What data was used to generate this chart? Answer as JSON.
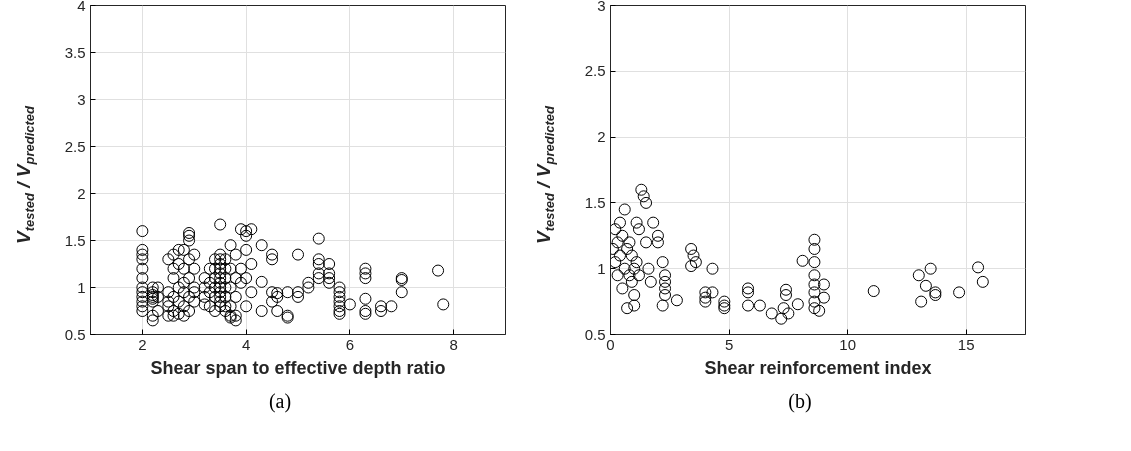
{
  "chart_data": [
    {
      "type": "scatter",
      "xlabel": "Shear span to effective depth ratio",
      "ylabel": "V$_{tested}$ / V$_{predicted}$",
      "annotations": [
        "(a)"
      ],
      "marker": "circle",
      "grid": true,
      "xlim": [
        1,
        9
      ],
      "ylim": [
        0.5,
        4
      ],
      "xticks": [
        2,
        4,
        6,
        8
      ],
      "yticks": [
        0.5,
        1,
        1.5,
        2,
        2.5,
        3,
        3.5,
        4
      ],
      "series": [
        {
          "color": "#000000",
          "x": [
            2,
            2,
            2,
            2,
            2,
            2,
            2,
            2,
            2,
            2,
            2,
            2,
            2.2,
            2.2,
            2.2,
            2.2,
            2.2,
            2.2,
            2.2,
            2.2,
            2.3,
            2.3,
            2.3,
            2.5,
            2.5,
            2.5,
            2.5,
            2.5,
            2.6,
            2.6,
            2.6,
            2.6,
            2.6,
            2.6,
            2.7,
            2.7,
            2.7,
            2.7,
            2.7,
            2.8,
            2.8,
            2.8,
            2.8,
            2.8,
            2.8,
            2.9,
            2.9,
            2.9,
            2.9,
            2.9,
            2.9,
            2.9,
            3.0,
            3.0,
            3.0,
            3.0,
            3.0,
            3.2,
            3.2,
            3.2,
            3.2,
            3.3,
            3.3,
            3.3,
            3.3,
            3.4,
            3.4,
            3.4,
            3.4,
            3.4,
            3.4,
            3.5,
            3.5,
            3.5,
            3.5,
            3.5,
            3.5,
            3.5,
            3.5,
            3.5,
            3.5,
            3.5,
            3.5,
            3.5,
            3.6,
            3.6,
            3.6,
            3.6,
            3.6,
            3.6,
            3.6,
            3.7,
            3.7,
            3.7,
            3.7,
            3.7,
            3.7,
            3.8,
            3.8,
            3.8,
            3.8,
            3.8,
            3.9,
            3.9,
            3.9,
            4.0,
            4.0,
            4.0,
            4.0,
            4.0,
            4.1,
            4.1,
            4.1,
            4.3,
            4.3,
            4.3,
            4.5,
            4.5,
            4.5,
            4.5,
            4.6,
            4.6,
            4.6,
            4.8,
            4.8,
            4.8,
            5.0,
            5.0,
            5.0,
            5.2,
            5.2,
            5.4,
            5.4,
            5.4,
            5.4,
            5.4,
            5.6,
            5.6,
            5.6,
            5.6,
            5.8,
            5.8,
            5.8,
            5.8,
            5.8,
            5.8,
            5.8,
            6.0,
            6.3,
            6.3,
            6.3,
            6.3,
            6.3,
            6.3,
            6.6,
            6.6,
            6.8,
            7.0,
            7.0,
            7.0,
            7.7,
            7.8
          ],
          "values": [
            1.6,
            1.4,
            1.35,
            1.3,
            1.2,
            1.1,
            1.0,
            0.95,
            0.9,
            0.85,
            0.8,
            0.75,
            0.95,
            0.9,
            0.92,
            0.88,
            1.0,
            0.85,
            0.7,
            0.65,
            1.0,
            0.9,
            0.75,
            0.8,
            0.7,
            0.85,
            1.3,
            0.95,
            1.35,
            1.2,
            1.1,
            0.9,
            0.75,
            0.7,
            1.4,
            1.25,
            1.0,
            0.85,
            0.72,
            1.4,
            1.2,
            1.05,
            0.95,
            0.8,
            0.7,
            1.58,
            1.55,
            1.5,
            1.3,
            1.1,
            0.9,
            0.75,
            1.35,
            1.2,
            1.0,
            0.95,
            0.85,
            1.1,
            1.0,
            0.9,
            0.82,
            1.05,
            0.95,
            0.8,
            1.2,
            1.3,
            1.2,
            1.1,
            1.0,
            0.9,
            0.75,
            1.67,
            1.35,
            1.3,
            1.25,
            1.2,
            1.15,
            1.1,
            1.05,
            1.0,
            0.95,
            0.9,
            0.85,
            0.8,
            1.3,
            1.2,
            1.1,
            1.0,
            0.9,
            0.8,
            0.75,
            1.45,
            1.2,
            1.0,
            0.8,
            0.7,
            0.68,
            1.35,
            1.1,
            0.9,
            0.7,
            0.65,
            1.62,
            1.2,
            1.05,
            1.6,
            1.55,
            1.4,
            1.1,
            0.8,
            1.62,
            1.25,
            0.95,
            1.45,
            1.06,
            0.75,
            1.35,
            1.3,
            0.95,
            0.85,
            0.9,
            0.94,
            0.75,
            0.95,
            0.7,
            0.68,
            1.35,
            0.95,
            0.9,
            1.05,
            1.0,
            1.52,
            1.3,
            1.25,
            1.15,
            1.1,
            1.25,
            1.15,
            1.1,
            1.05,
            0.9,
            0.85,
            0.8,
            0.75,
            0.72,
            1.0,
            0.95,
            0.82,
            1.2,
            1.15,
            1.1,
            0.88,
            0.75,
            0.72,
            0.75,
            0.8,
            0.8,
            0.95,
            1.1,
            1.08,
            1.18,
            0.82
          ]
        }
      ]
    },
    {
      "type": "scatter",
      "xlabel": "Shear reinforcement index",
      "ylabel": "V$_{tested}$ / V$_{predicted}$",
      "annotations": [
        "(b)"
      ],
      "marker": "circle",
      "grid": true,
      "xlim": [
        0,
        17.5
      ],
      "ylim": [
        0.5,
        3
      ],
      "xticks": [
        0,
        5,
        10,
        15
      ],
      "yticks": [
        0.5,
        1,
        1.5,
        2,
        2.5,
        3
      ],
      "series": [
        {
          "color": "#000000",
          "x": [
            0.1,
            0.2,
            0.2,
            0.3,
            0.3,
            0.4,
            0.4,
            0.5,
            0.5,
            0.6,
            0.6,
            0.7,
            0.7,
            0.8,
            0.8,
            0.9,
            0.9,
            1.0,
            1.0,
            1.0,
            1.1,
            1.1,
            1.2,
            1.2,
            1.3,
            1.4,
            1.5,
            1.5,
            1.6,
            1.7,
            1.8,
            2.0,
            2.0,
            2.2,
            2.3,
            2.3,
            2.3,
            2.3,
            2.2,
            2.8,
            3.4,
            3.5,
            3.4,
            3.6,
            4.0,
            4.0,
            4.0,
            4.3,
            4.3,
            4.8,
            4.8,
            4.8,
            5.8,
            5.8,
            5.8,
            6.3,
            6.8,
            7.4,
            7.4,
            7.3,
            7.2,
            7.5,
            7.9,
            8.1,
            8.6,
            8.6,
            8.6,
            8.6,
            8.6,
            8.6,
            8.6,
            8.6,
            8.8,
            9.0,
            9.0,
            11.1,
            13.0,
            13.1,
            13.3,
            13.5,
            13.7,
            13.7,
            14.7,
            15.5,
            15.7
          ],
          "values": [
            1.15,
            1.3,
            1.05,
            1.2,
            0.95,
            1.35,
            1.1,
            0.85,
            1.25,
            1.45,
            1.0,
            0.7,
            1.15,
            1.2,
            0.95,
            1.1,
            0.9,
            1.0,
            0.8,
            0.72,
            1.35,
            1.05,
            1.3,
            0.95,
            1.6,
            1.55,
            1.5,
            1.2,
            1.0,
            0.9,
            1.35,
            1.25,
            1.2,
            1.05,
            0.95,
            0.9,
            0.85,
            0.8,
            0.72,
            0.76,
            1.15,
            1.1,
            1.02,
            1.05,
            0.82,
            0.78,
            0.75,
            1.0,
            0.82,
            0.75,
            0.72,
            0.7,
            0.85,
            0.82,
            0.72,
            0.72,
            0.66,
            0.84,
            0.8,
            0.7,
            0.62,
            0.66,
            0.73,
            1.06,
            1.22,
            1.15,
            1.05,
            0.95,
            0.88,
            0.82,
            0.75,
            0.7,
            0.68,
            0.88,
            0.78,
            0.83,
            0.95,
            0.75,
            0.87,
            1.0,
            0.82,
            0.8,
            0.82,
            1.01,
            0.9
          ]
        }
      ]
    }
  ]
}
